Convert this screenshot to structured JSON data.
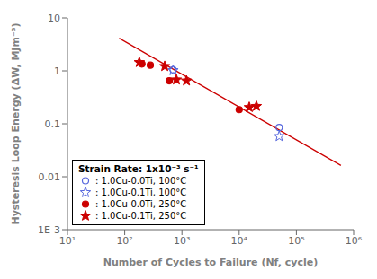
{
  "chart_data": {
    "type": "scatter",
    "xlabel": "Number of Cycles to Failure (Nf, cycle)",
    "ylabel": "Hysteresis Loop Energy (ΔW, MJm⁻³)",
    "log": true,
    "xlim": [
      10,
      1000000
    ],
    "ylim": [
      0.001,
      10
    ],
    "xticks": [
      {
        "value": 10,
        "label": "10¹"
      },
      {
        "value": 100,
        "label": "10²"
      },
      {
        "value": 1000,
        "label": "10³"
      },
      {
        "value": 10000,
        "label": "10⁴"
      },
      {
        "value": 100000,
        "label": "10⁵"
      },
      {
        "value": 1000000,
        "label": "10⁶"
      }
    ],
    "yticks": [
      {
        "value": 0.001,
        "label": "1E-3"
      },
      0.01,
      0.1,
      1,
      10
    ],
    "grid": false,
    "legend": "lower left",
    "legend_title": "Strain Rate: 1x10⁻³ s⁻¹",
    "series": [
      {
        "type": "line",
        "color": "#cc0000",
        "line_style": "solid",
        "x": [
          80,
          600000
        ],
        "values": [
          4.1345,
          0.01636
        ]
      },
      {
        "type": "scatter",
        "name": ": 1.0Cu-0.0Ti, 100°C",
        "marker": "circle_open",
        "color": "#5566dd",
        "x": [
          700,
          50000
        ],
        "values": [
          1.05,
          0.085
        ]
      },
      {
        "type": "scatter",
        "name": ": 1.0Cu-0.1Ti, 100°C",
        "marker": "star_open",
        "color": "#5566dd",
        "x": [
          700,
          50000
        ],
        "values": [
          1.02,
          0.058
        ]
      },
      {
        "type": "scatter",
        "name": ": 1.0Cu-0.0Ti, 250°C",
        "marker": "circle",
        "color": "#cc0000",
        "x": [
          200,
          280,
          600,
          10000
        ],
        "values": [
          1.35,
          1.28,
          0.65,
          0.185
        ]
      },
      {
        "type": "scatter",
        "name": ": 1.0Cu-0.1Ti, 250°C",
        "marker": "star",
        "color": "#cc0000",
        "x": [
          180,
          500,
          800,
          1200,
          15000,
          20000
        ],
        "values": [
          1.45,
          1.22,
          0.68,
          0.65,
          0.205,
          0.215
        ]
      }
    ]
  }
}
